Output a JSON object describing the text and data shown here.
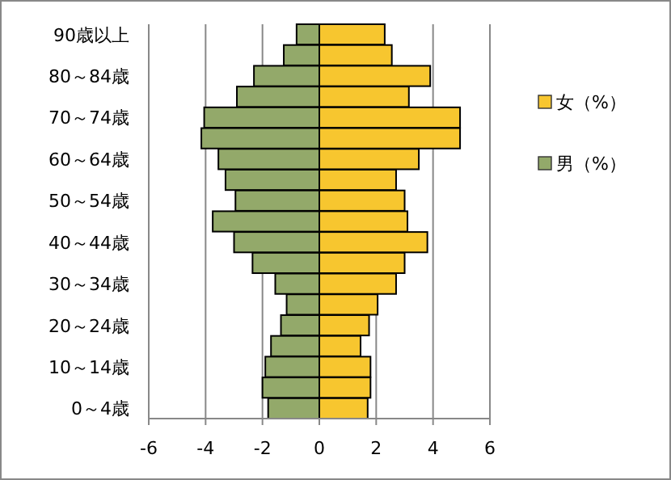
{
  "chart_data": {
    "type": "bar",
    "orientation": "horizontal",
    "stacked": true,
    "categories": [
      "90歳以上",
      null,
      "80～84歳",
      null,
      "70～74歳",
      null,
      "60～64歳",
      null,
      "50～54歳",
      null,
      "40～44歳",
      null,
      "30～34歳",
      null,
      "20～24歳",
      null,
      "10～14歳",
      null,
      "0～4歳"
    ],
    "series": [
      {
        "name": "女（%）",
        "color": "#f7c62f",
        "values": [
          2.3,
          2.55,
          3.9,
          3.15,
          4.95,
          4.95,
          3.5,
          2.7,
          3.0,
          3.1,
          3.8,
          3.0,
          2.7,
          2.05,
          1.75,
          1.45,
          1.8,
          1.8,
          1.7
        ]
      },
      {
        "name": "男（%）",
        "color": "#93a96a",
        "values": [
          -0.8,
          -1.25,
          -2.3,
          -2.9,
          -4.05,
          -4.15,
          -3.55,
          -3.3,
          -2.95,
          -3.75,
          -3.0,
          -2.35,
          -1.55,
          -1.15,
          -1.35,
          -1.7,
          -1.9,
          -2.0,
          -1.8
        ]
      }
    ],
    "xlim": [
      -6,
      6
    ],
    "xticks": [
      -6,
      -4,
      -2,
      0,
      2,
      4,
      6
    ],
    "grid": "x",
    "legend": "right"
  }
}
